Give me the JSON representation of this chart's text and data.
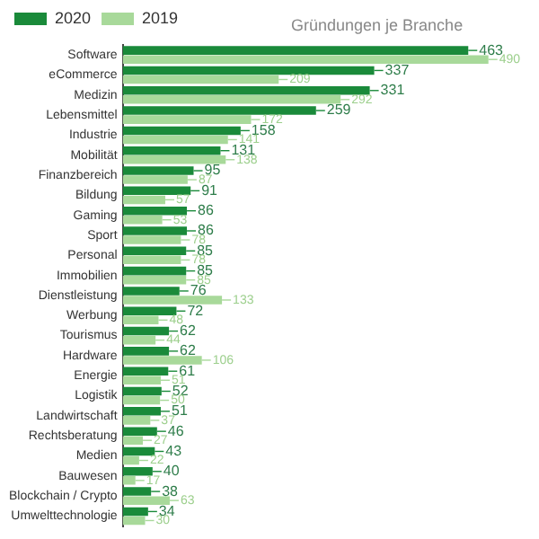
{
  "chart_data": {
    "type": "bar",
    "orientation": "horizontal",
    "title": "Gründungen je Branche",
    "categories": [
      "Software",
      "eCommerce",
      "Medizin",
      "Lebensmittel",
      "Industrie",
      "Mobilität",
      "Finanzbereich",
      "Bildung",
      "Gaming",
      "Sport",
      "Personal",
      "Immobilien",
      "Dienstleistung",
      "Werbung",
      "Tourismus",
      "Hardware",
      "Energie",
      "Logistik",
      "Landwirtschaft",
      "Rechtsberatung",
      "Medien",
      "Bauwesen",
      "Blockchain / Crypto",
      "Umwelttechnologie"
    ],
    "series": [
      {
        "name": "2020",
        "color": "#1a8a3a",
        "values": [
          463,
          337,
          331,
          259,
          158,
          131,
          95,
          91,
          86,
          86,
          85,
          85,
          76,
          72,
          62,
          62,
          61,
          52,
          51,
          46,
          43,
          40,
          38,
          34
        ]
      },
      {
        "name": "2019",
        "color": "#a8d99a",
        "values": [
          490,
          209,
          292,
          172,
          141,
          138,
          87,
          57,
          53,
          78,
          78,
          85,
          133,
          48,
          44,
          106,
          51,
          50,
          37,
          27,
          22,
          17,
          63,
          30
        ]
      }
    ],
    "tick_labels": "y",
    "data_labels": true,
    "legend": "top left",
    "grid": false
  }
}
